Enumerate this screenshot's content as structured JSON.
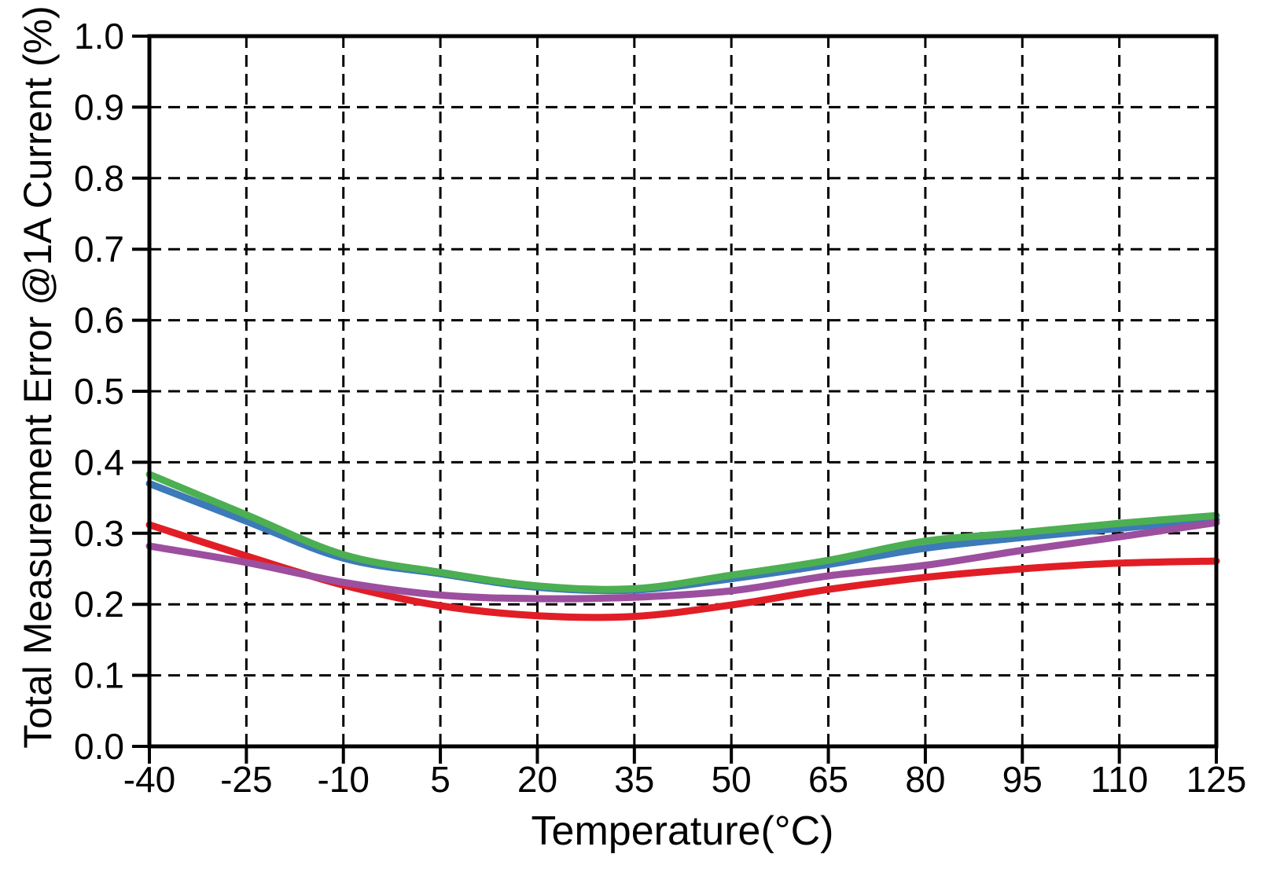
{
  "chart_data": {
    "type": "line",
    "title": "",
    "xlabel": "Temperature(°C)",
    "ylabel": "Total Measurement Error @1A Current (%)",
    "xlim": [
      -40,
      125
    ],
    "ylim": [
      0.0,
      1.0
    ],
    "xticks": [
      -40,
      -25,
      -10,
      5,
      20,
      35,
      50,
      65,
      80,
      95,
      110,
      125
    ],
    "xtick_labels": [
      "-40",
      "-25",
      "-10",
      "5",
      "20",
      "35",
      "50",
      "65",
      "80",
      "95",
      "110",
      "125"
    ],
    "yticks": [
      0.0,
      0.1,
      0.2,
      0.3,
      0.4,
      0.5,
      0.6,
      0.7,
      0.8,
      0.9,
      1.0
    ],
    "ytick_labels": [
      "0.0",
      "0.1",
      "0.2",
      "0.3",
      "0.4",
      "0.5",
      "0.6",
      "0.7",
      "0.8",
      "0.9",
      "1.0"
    ],
    "grid": true,
    "grid_style": "dashed",
    "legend": false,
    "x": [
      -40,
      -25,
      -10,
      5,
      20,
      35,
      50,
      65,
      80,
      95,
      110,
      125
    ],
    "series": [
      {
        "name": "red-series",
        "color": "#e11e26",
        "values": [
          0.312,
          0.268,
          0.227,
          0.198,
          0.184,
          0.183,
          0.199,
          0.221,
          0.238,
          0.25,
          0.258,
          0.261
        ]
      },
      {
        "name": "blue-series",
        "color": "#3c7ab8",
        "values": [
          0.37,
          0.317,
          0.265,
          0.243,
          0.224,
          0.22,
          0.236,
          0.256,
          0.279,
          0.294,
          0.307,
          0.319
        ]
      },
      {
        "name": "purple-series",
        "color": "#9c4f9e",
        "values": [
          0.282,
          0.259,
          0.231,
          0.213,
          0.208,
          0.21,
          0.219,
          0.24,
          0.255,
          0.276,
          0.295,
          0.315
        ]
      },
      {
        "name": "green-series",
        "color": "#4caf52",
        "values": [
          0.383,
          0.326,
          0.27,
          0.245,
          0.226,
          0.222,
          0.241,
          0.262,
          0.289,
          0.301,
          0.314,
          0.325
        ]
      }
    ],
    "colors": {
      "axis": "#000000",
      "grid": "#000000",
      "background": "#ffffff"
    }
  }
}
